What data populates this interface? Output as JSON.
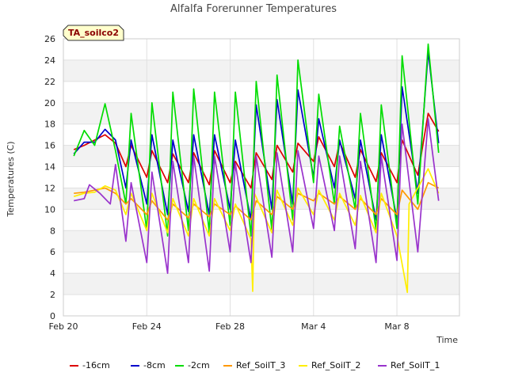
{
  "chart_data": {
    "type": "line",
    "title": "Alfalfa Forerunner Temperatures",
    "xlabel": "Time",
    "ylabel": "Temperatures (C)",
    "badge": "TA_soilco2",
    "ylim": [
      0,
      26
    ],
    "yticks": [
      0,
      2,
      4,
      6,
      8,
      10,
      12,
      14,
      16,
      18,
      20,
      22,
      24,
      26
    ],
    "xlim": [
      "2023-02-20",
      "2023-03-11"
    ],
    "xticks": [
      {
        "label": "Feb 20",
        "date": "2023-02-20"
      },
      {
        "label": "Feb 24",
        "date": "2023-02-24"
      },
      {
        "label": "Feb 28",
        "date": "2023-02-28"
      },
      {
        "label": "Mar 4",
        "date": "2023-03-04"
      },
      {
        "label": "Mar 8",
        "date": "2023-03-08"
      }
    ],
    "grid": true,
    "legend_position": "bottom",
    "series": [
      {
        "name": "-16cm",
        "color": "#dd0000",
        "values": [
          [
            "2023-02-20 12:00",
            15.6
          ],
          [
            "2023-02-21 00:00",
            16.0
          ],
          [
            "2023-02-21 12:00",
            16.5
          ],
          [
            "2023-02-22 00:00",
            17.0
          ],
          [
            "2023-02-22 12:00",
            16.2
          ],
          [
            "2023-02-23 00:00",
            14.0
          ],
          [
            "2023-02-23 06:00",
            16.0
          ],
          [
            "2023-02-24 00:00",
            13.0
          ],
          [
            "2023-02-24 06:00",
            15.5
          ],
          [
            "2023-02-25 00:00",
            12.5
          ],
          [
            "2023-02-25 06:00",
            15.2
          ],
          [
            "2023-02-26 00:00",
            12.5
          ],
          [
            "2023-02-26 06:00",
            15.3
          ],
          [
            "2023-02-27 00:00",
            12.3
          ],
          [
            "2023-02-27 06:00",
            15.5
          ],
          [
            "2023-02-28 00:00",
            12.5
          ],
          [
            "2023-02-28 06:00",
            14.5
          ],
          [
            "2023-03-01 00:00",
            12.0
          ],
          [
            "2023-03-01 06:00",
            15.3
          ],
          [
            "2023-03-02 00:00",
            12.8
          ],
          [
            "2023-03-02 06:00",
            16.0
          ],
          [
            "2023-03-03 00:00",
            13.5
          ],
          [
            "2023-03-03 06:00",
            16.2
          ],
          [
            "2023-03-04 00:00",
            14.5
          ],
          [
            "2023-03-04 06:00",
            16.8
          ],
          [
            "2023-03-05 00:00",
            14.0
          ],
          [
            "2023-03-05 06:00",
            16.3
          ],
          [
            "2023-03-06 00:00",
            13.0
          ],
          [
            "2023-03-06 06:00",
            15.6
          ],
          [
            "2023-03-07 00:00",
            12.6
          ],
          [
            "2023-03-07 06:00",
            15.3
          ],
          [
            "2023-03-08 00:00",
            12.5
          ],
          [
            "2023-03-08 06:00",
            16.5
          ],
          [
            "2023-03-09 00:00",
            13.2
          ],
          [
            "2023-03-09 12:00",
            19.0
          ],
          [
            "2023-03-10 00:00",
            17.3
          ]
        ]
      },
      {
        "name": "-8cm",
        "color": "#0000cc",
        "values": [
          [
            "2023-02-20 12:00",
            15.2
          ],
          [
            "2023-02-21 00:00",
            16.3
          ],
          [
            "2023-02-21 12:00",
            16.3
          ],
          [
            "2023-02-22 00:00",
            17.5
          ],
          [
            "2023-02-22 12:00",
            16.5
          ],
          [
            "2023-02-23 00:00",
            12.0
          ],
          [
            "2023-02-23 06:00",
            16.5
          ],
          [
            "2023-02-24 00:00",
            10.5
          ],
          [
            "2023-02-24 06:00",
            17.0
          ],
          [
            "2023-02-25 00:00",
            9.5
          ],
          [
            "2023-02-25 06:00",
            16.5
          ],
          [
            "2023-02-26 00:00",
            9.8
          ],
          [
            "2023-02-26 06:00",
            17.0
          ],
          [
            "2023-02-27 00:00",
            9.5
          ],
          [
            "2023-02-27 06:00",
            17.0
          ],
          [
            "2023-02-28 00:00",
            10.0
          ],
          [
            "2023-02-28 06:00",
            16.5
          ],
          [
            "2023-03-01 00:00",
            9.0
          ],
          [
            "2023-03-01 06:00",
            19.8
          ],
          [
            "2023-03-02 00:00",
            10.0
          ],
          [
            "2023-03-02 06:00",
            20.3
          ],
          [
            "2023-03-03 00:00",
            10.5
          ],
          [
            "2023-03-03 06:00",
            21.2
          ],
          [
            "2023-03-04 00:00",
            13.0
          ],
          [
            "2023-03-04 06:00",
            18.5
          ],
          [
            "2023-03-05 00:00",
            12.0
          ],
          [
            "2023-03-05 06:00",
            16.5
          ],
          [
            "2023-03-06 00:00",
            11.0
          ],
          [
            "2023-03-06 06:00",
            16.5
          ],
          [
            "2023-03-07 00:00",
            9.0
          ],
          [
            "2023-03-07 06:00",
            17.0
          ],
          [
            "2023-03-08 00:00",
            9.0
          ],
          [
            "2023-03-08 06:00",
            21.5
          ],
          [
            "2023-03-09 00:00",
            11.5
          ],
          [
            "2023-03-09 12:00",
            24.8
          ],
          [
            "2023-03-10 00:00",
            16.2
          ]
        ]
      },
      {
        "name": "-2cm",
        "color": "#00dd00",
        "values": [
          [
            "2023-02-20 12:00",
            15.0
          ],
          [
            "2023-02-21 00:00",
            17.4
          ],
          [
            "2023-02-21 12:00",
            16.0
          ],
          [
            "2023-02-22 00:00",
            19.9
          ],
          [
            "2023-02-22 12:00",
            15.5
          ],
          [
            "2023-02-23 00:00",
            10.5
          ],
          [
            "2023-02-23 06:00",
            19.0
          ],
          [
            "2023-02-24 00:00",
            8.0
          ],
          [
            "2023-02-24 06:00",
            20.0
          ],
          [
            "2023-02-25 00:00",
            7.5
          ],
          [
            "2023-02-25 06:00",
            21.0
          ],
          [
            "2023-02-26 00:00",
            8.0
          ],
          [
            "2023-02-26 06:00",
            21.3
          ],
          [
            "2023-02-27 00:00",
            7.8
          ],
          [
            "2023-02-27 06:00",
            21.0
          ],
          [
            "2023-02-28 00:00",
            8.5
          ],
          [
            "2023-02-28 06:00",
            21.0
          ],
          [
            "2023-03-01 00:00",
            7.5
          ],
          [
            "2023-03-01 06:00",
            22.0
          ],
          [
            "2023-03-02 00:00",
            8.0
          ],
          [
            "2023-03-02 06:00",
            22.6
          ],
          [
            "2023-03-03 00:00",
            9.0
          ],
          [
            "2023-03-03 06:00",
            24.0
          ],
          [
            "2023-03-04 00:00",
            12.5
          ],
          [
            "2023-03-04 06:00",
            20.8
          ],
          [
            "2023-03-05 00:00",
            10.5
          ],
          [
            "2023-03-05 06:00",
            17.8
          ],
          [
            "2023-03-06 00:00",
            10.0
          ],
          [
            "2023-03-06 06:00",
            19.0
          ],
          [
            "2023-03-07 00:00",
            8.0
          ],
          [
            "2023-03-07 06:00",
            19.8
          ],
          [
            "2023-03-08 00:00",
            8.2
          ],
          [
            "2023-03-08 06:00",
            24.4
          ],
          [
            "2023-03-09 00:00",
            10.5
          ],
          [
            "2023-03-09 12:00",
            25.5
          ],
          [
            "2023-03-10 00:00",
            15.3
          ]
        ]
      },
      {
        "name": "Ref_SoilT_3",
        "color": "#ff9900",
        "values": [
          [
            "2023-02-20 12:00",
            11.5
          ],
          [
            "2023-02-21 00:00",
            11.6
          ],
          [
            "2023-02-21 12:00",
            11.8
          ],
          [
            "2023-02-22 00:00",
            12.0
          ],
          [
            "2023-02-22 12:00",
            11.5
          ],
          [
            "2023-02-23 00:00",
            10.5
          ],
          [
            "2023-02-23 06:00",
            11.0
          ],
          [
            "2023-02-24 00:00",
            9.5
          ],
          [
            "2023-02-24 06:00",
            10.8
          ],
          [
            "2023-02-25 00:00",
            9.0
          ],
          [
            "2023-02-25 06:00",
            10.5
          ],
          [
            "2023-02-26 00:00",
            9.2
          ],
          [
            "2023-02-26 06:00",
            10.5
          ],
          [
            "2023-02-27 00:00",
            9.3
          ],
          [
            "2023-02-27 06:00",
            10.5
          ],
          [
            "2023-02-28 00:00",
            9.5
          ],
          [
            "2023-02-28 06:00",
            10.3
          ],
          [
            "2023-03-01 00:00",
            9.0
          ],
          [
            "2023-03-01 06:00",
            10.8
          ],
          [
            "2023-03-02 00:00",
            9.5
          ],
          [
            "2023-03-02 06:00",
            11.2
          ],
          [
            "2023-03-03 00:00",
            10.0
          ],
          [
            "2023-03-03 06:00",
            11.5
          ],
          [
            "2023-03-04 00:00",
            10.8
          ],
          [
            "2023-03-04 06:00",
            11.5
          ],
          [
            "2023-03-05 00:00",
            10.5
          ],
          [
            "2023-03-05 06:00",
            11.2
          ],
          [
            "2023-03-06 00:00",
            10.0
          ],
          [
            "2023-03-06 06:00",
            11.0
          ],
          [
            "2023-03-07 00:00",
            9.5
          ],
          [
            "2023-03-07 06:00",
            11.0
          ],
          [
            "2023-03-08 00:00",
            9.5
          ],
          [
            "2023-03-08 06:00",
            11.8
          ],
          [
            "2023-03-09 00:00",
            10.0
          ],
          [
            "2023-03-09 12:00",
            12.5
          ],
          [
            "2023-03-10 00:00",
            12.0
          ]
        ]
      },
      {
        "name": "Ref_SoilT_2",
        "color": "#ffee00",
        "values": [
          [
            "2023-02-20 12:00",
            11.2
          ],
          [
            "2023-02-21 00:00",
            11.5
          ],
          [
            "2023-02-21 12:00",
            11.6
          ],
          [
            "2023-02-22 00:00",
            12.2
          ],
          [
            "2023-02-22 12:00",
            11.8
          ],
          [
            "2023-02-23 00:00",
            9.5
          ],
          [
            "2023-02-23 06:00",
            11.5
          ],
          [
            "2023-02-24 00:00",
            8.0
          ],
          [
            "2023-02-24 06:00",
            11.5
          ],
          [
            "2023-02-25 00:00",
            7.8
          ],
          [
            "2023-02-25 06:00",
            11.0
          ],
          [
            "2023-02-26 00:00",
            7.5
          ],
          [
            "2023-02-26 06:00",
            11.0
          ],
          [
            "2023-02-27 00:00",
            7.5
          ],
          [
            "2023-02-27 06:00",
            11.0
          ],
          [
            "2023-02-28 00:00",
            8.0
          ],
          [
            "2023-02-28 06:00",
            10.5
          ],
          [
            "2023-03-01 00:00",
            7.2
          ],
          [
            "2023-03-01 02:00",
            2.3
          ],
          [
            "2023-03-01 04:00",
            11.5
          ],
          [
            "2023-03-02 00:00",
            7.8
          ],
          [
            "2023-03-02 06:00",
            11.8
          ],
          [
            "2023-03-03 00:00",
            8.5
          ],
          [
            "2023-03-03 06:00",
            12.0
          ],
          [
            "2023-03-04 00:00",
            9.5
          ],
          [
            "2023-03-04 06:00",
            11.8
          ],
          [
            "2023-03-05 00:00",
            9.0
          ],
          [
            "2023-03-05 06:00",
            11.5
          ],
          [
            "2023-03-06 00:00",
            8.5
          ],
          [
            "2023-03-06 06:00",
            11.3
          ],
          [
            "2023-03-07 00:00",
            7.8
          ],
          [
            "2023-03-07 06:00",
            11.5
          ],
          [
            "2023-03-08 00:00",
            7.5
          ],
          [
            "2023-03-08 12:00",
            2.2
          ],
          [
            "2023-03-08 14:00",
            10.5
          ],
          [
            "2023-03-09 12:00",
            13.8
          ],
          [
            "2023-03-10 00:00",
            11.5
          ]
        ]
      },
      {
        "name": "Ref_SoilT_1",
        "color": "#9933cc",
        "values": [
          [
            "2023-02-20 12:00",
            10.8
          ],
          [
            "2023-02-21 00:00",
            11.0
          ],
          [
            "2023-02-21 06:00",
            12.3
          ],
          [
            "2023-02-21 18:00",
            11.5
          ],
          [
            "2023-02-22 06:00",
            10.5
          ],
          [
            "2023-02-22 12:00",
            14.2
          ],
          [
            "2023-02-23 00:00",
            7.0
          ],
          [
            "2023-02-23 06:00",
            12.5
          ],
          [
            "2023-02-24 00:00",
            5.0
          ],
          [
            "2023-02-24 06:00",
            13.5
          ],
          [
            "2023-02-25 00:00",
            4.0
          ],
          [
            "2023-02-25 06:00",
            14.5
          ],
          [
            "2023-02-26 00:00",
            5.0
          ],
          [
            "2023-02-26 06:00",
            15.0
          ],
          [
            "2023-02-27 00:00",
            4.2
          ],
          [
            "2023-02-27 06:00",
            15.0
          ],
          [
            "2023-02-28 00:00",
            6.0
          ],
          [
            "2023-02-28 06:00",
            14.3
          ],
          [
            "2023-03-01 00:00",
            5.0
          ],
          [
            "2023-03-01 06:00",
            15.0
          ],
          [
            "2023-03-02 00:00",
            5.5
          ],
          [
            "2023-03-02 06:00",
            15.3
          ],
          [
            "2023-03-03 00:00",
            6.0
          ],
          [
            "2023-03-03 06:00",
            15.5
          ],
          [
            "2023-03-04 00:00",
            8.2
          ],
          [
            "2023-03-04 06:00",
            15.0
          ],
          [
            "2023-03-05 00:00",
            8.0
          ],
          [
            "2023-03-05 06:00",
            15.0
          ],
          [
            "2023-03-06 00:00",
            6.3
          ],
          [
            "2023-03-06 06:00",
            14.5
          ],
          [
            "2023-03-07 00:00",
            5.0
          ],
          [
            "2023-03-07 06:00",
            15.0
          ],
          [
            "2023-03-08 00:00",
            5.2
          ],
          [
            "2023-03-08 06:00",
            18.0
          ],
          [
            "2023-03-09 00:00",
            6.0
          ],
          [
            "2023-03-09 12:00",
            18.5
          ],
          [
            "2023-03-10 00:00",
            10.8
          ]
        ]
      }
    ]
  }
}
